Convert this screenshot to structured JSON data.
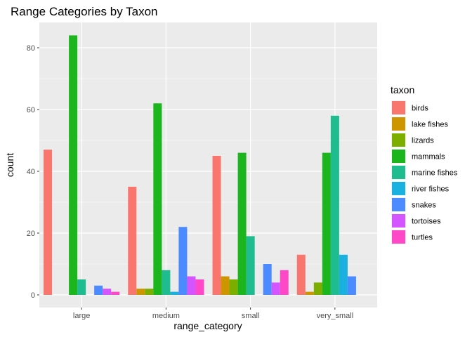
{
  "chart_data": {
    "type": "bar",
    "title": "Range Categories by Taxon",
    "xlabel": "range_category",
    "ylabel": "count",
    "ylim": [
      0,
      88
    ],
    "yticks": [
      0,
      20,
      40,
      60,
      80
    ],
    "grid": true,
    "legend": {
      "title": "taxon",
      "placement": "right"
    },
    "categories": [
      "large",
      "medium",
      "small",
      "very_small"
    ],
    "series": [
      {
        "name": "birds",
        "color": "#F8766D",
        "values": [
          47,
          35,
          45,
          13
        ]
      },
      {
        "name": "lake fishes",
        "color": "#CD9600",
        "values": [
          0,
          2,
          6,
          1
        ]
      },
      {
        "name": "lizards",
        "color": "#7CAE00",
        "values": [
          0,
          2,
          5,
          4
        ]
      },
      {
        "name": "mammals",
        "color": "#1DB51D",
        "values": [
          84,
          62,
          46,
          46
        ]
      },
      {
        "name": "marine fishes",
        "color": "#1EBC8E",
        "values": [
          5,
          8,
          19,
          58
        ]
      },
      {
        "name": "river fishes",
        "color": "#1AB0E0",
        "values": [
          0,
          1,
          0,
          13
        ]
      },
      {
        "name": "snakes",
        "color": "#4C8BFF",
        "values": [
          3,
          22,
          10,
          6
        ]
      },
      {
        "name": "tortoises",
        "color": "#D455FF",
        "values": [
          2,
          6,
          4,
          0
        ]
      },
      {
        "name": "turtles",
        "color": "#FF48C7",
        "values": [
          1,
          5,
          8,
          0
        ]
      }
    ]
  }
}
